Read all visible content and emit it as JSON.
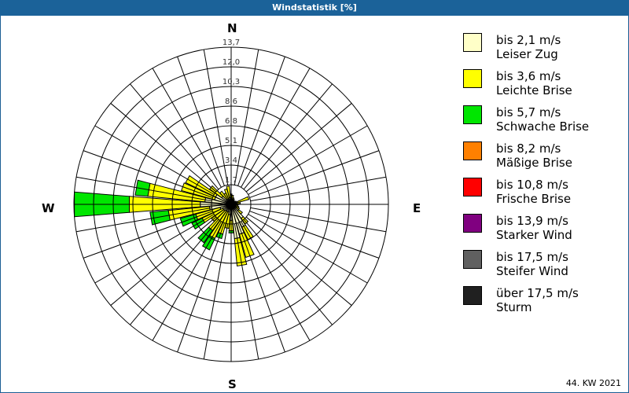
{
  "title": "Windstatistik [%]",
  "footer": "44. KW 2021",
  "directions": {
    "n": "N",
    "e": "E",
    "s": "S",
    "w": "W"
  },
  "legend": [
    {
      "range": "bis 2,1 m/s",
      "name": "Leiser Zug",
      "color": "#ffffc8"
    },
    {
      "range": "bis 3,6 m/s",
      "name": "Leichte Brise",
      "color": "#ffff00"
    },
    {
      "range": "bis 5,7 m/s",
      "name": "Schwache Brise",
      "color": "#00e600"
    },
    {
      "range": "bis 8,2 m/s",
      "name": "Mäßige Brise",
      "color": "#ff8000"
    },
    {
      "range": "bis 10,8 m/s",
      "name": "Frische Brise",
      "color": "#ff0000"
    },
    {
      "range": "bis 13,9 m/s",
      "name": "Starker Wind",
      "color": "#800080"
    },
    {
      "range": "bis 17,5 m/s",
      "name": "Steifer Wind",
      "color": "#606060"
    },
    {
      "range": "über 17,5 m/s",
      "name": "Sturm",
      "color": "#202020"
    }
  ],
  "chart_data": {
    "type": "wind-rose",
    "title": "Windstatistik [%]",
    "subtitle": "44. KW 2021",
    "radial_ticks": [
      "1,7",
      "3,4",
      "5,1",
      "6,8",
      "8,6",
      "10,3",
      "12,0",
      "13,7"
    ],
    "radial_max": 13.7,
    "sector_width_deg": 10,
    "series_names": [
      "Leiser Zug",
      "Leichte Brise",
      "Schwache Brise"
    ],
    "series_colors": [
      "#ffffc8",
      "#ffff00",
      "#00e600"
    ],
    "sectors": [
      {
        "dir": 0,
        "values": [
          0.5,
          0.4,
          0
        ]
      },
      {
        "dir": 10,
        "values": [
          0.5,
          0.3,
          0
        ]
      },
      {
        "dir": 20,
        "values": [
          0.4,
          0.2,
          0
        ]
      },
      {
        "dir": 30,
        "values": [
          0.3,
          0.2,
          0
        ]
      },
      {
        "dir": 40,
        "values": [
          0.3,
          0.1,
          0
        ]
      },
      {
        "dir": 50,
        "values": [
          0.3,
          0.1,
          0
        ]
      },
      {
        "dir": 60,
        "values": [
          0.4,
          0.1,
          0
        ]
      },
      {
        "dir": 70,
        "values": [
          0.6,
          1.0,
          0
        ]
      },
      {
        "dir": 80,
        "values": [
          0.5,
          0.3,
          0
        ]
      },
      {
        "dir": 90,
        "values": [
          0.4,
          0.2,
          0
        ]
      },
      {
        "dir": 100,
        "values": [
          0.4,
          0.2,
          0
        ]
      },
      {
        "dir": 110,
        "values": [
          0.4,
          0.3,
          0
        ]
      },
      {
        "dir": 120,
        "values": [
          0.5,
          0.3,
          0
        ]
      },
      {
        "dir": 130,
        "values": [
          0.8,
          0.4,
          0
        ]
      },
      {
        "dir": 140,
        "values": [
          1.5,
          0.6,
          0
        ]
      },
      {
        "dir": 150,
        "values": [
          2.2,
          1.2,
          0
        ]
      },
      {
        "dir": 160,
        "values": [
          2.7,
          2.1,
          0
        ]
      },
      {
        "dir": 170,
        "values": [
          3.0,
          2.4,
          0
        ]
      },
      {
        "dir": 180,
        "values": [
          1.4,
          0.9,
          0.2
        ]
      },
      {
        "dir": 190,
        "values": [
          0.9,
          1.2,
          0
        ]
      },
      {
        "dir": 200,
        "values": [
          0.7,
          2.0,
          0.4
        ]
      },
      {
        "dir": 210,
        "values": [
          0.7,
          2.6,
          1.1
        ]
      },
      {
        "dir": 220,
        "values": [
          0.7,
          2.1,
          1.3
        ]
      },
      {
        "dir": 230,
        "values": [
          0.8,
          1.3,
          0
        ]
      },
      {
        "dir": 240,
        "values": [
          0.8,
          2.0,
          1.0
        ]
      },
      {
        "dir": 250,
        "values": [
          1.0,
          2.2,
          1.4
        ]
      },
      {
        "dir": 260,
        "values": [
          1.9,
          3.6,
          1.6
        ]
      },
      {
        "dir": 270,
        "values": [
          2.7,
          6.2,
          4.8
        ]
      },
      {
        "dir": 280,
        "values": [
          2.3,
          5.0,
          1.1
        ]
      },
      {
        "dir": 290,
        "values": [
          1.5,
          3.0,
          0
        ]
      },
      {
        "dir": 300,
        "values": [
          1.5,
          2.9,
          0
        ]
      },
      {
        "dir": 310,
        "values": [
          1.0,
          1.3,
          0
        ]
      },
      {
        "dir": 320,
        "values": [
          0.6,
          0.8,
          0
        ]
      },
      {
        "dir": 330,
        "values": [
          0.5,
          0.6,
          0
        ]
      },
      {
        "dir": 340,
        "values": [
          0.5,
          0.9,
          0
        ]
      },
      {
        "dir": 350,
        "values": [
          0.6,
          1.0,
          0
        ]
      }
    ]
  }
}
